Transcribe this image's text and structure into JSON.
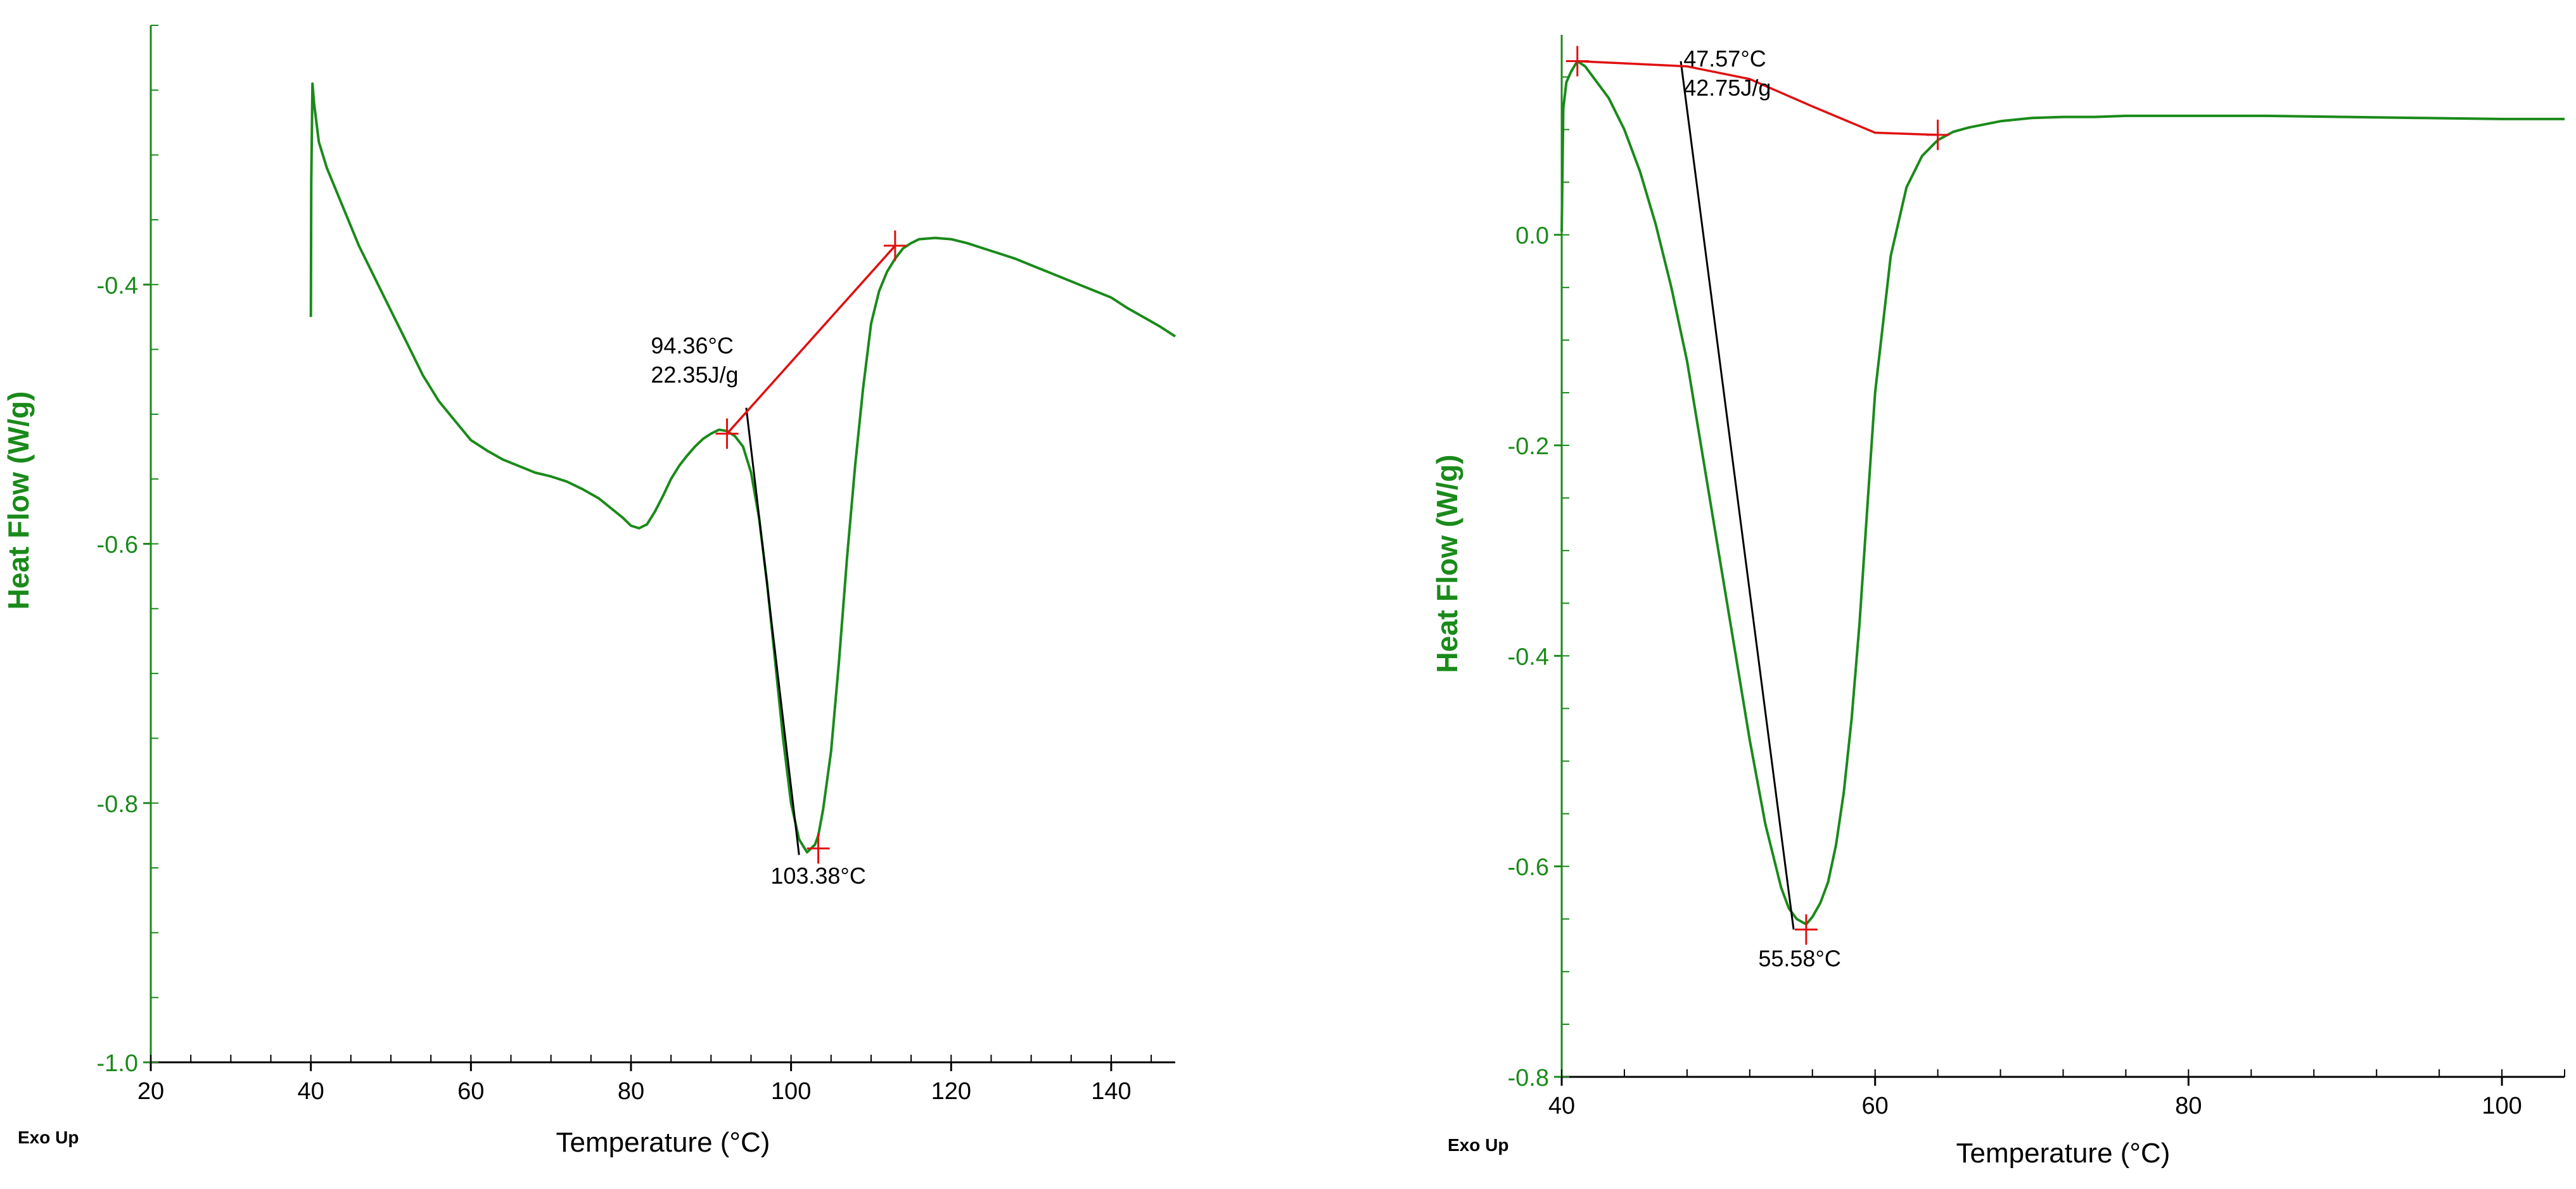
{
  "chart_data": [
    {
      "type": "line",
      "title": "",
      "xlabel": "Temperature (°C)",
      "ylabel": "Heat Flow (W/g)",
      "corner_label": "Exo Up",
      "xlim": [
        20,
        148
      ],
      "ylim": [
        -1.0,
        -0.2
      ],
      "xticks": [
        20,
        40,
        60,
        80,
        100,
        120,
        140
      ],
      "xtick_labels": [
        "20",
        "40",
        "60",
        "80",
        "100",
        "120",
        "140"
      ],
      "xminor_step": 5,
      "yticks": [
        -1.0,
        -0.8,
        -0.6,
        -0.4
      ],
      "ytick_labels": [
        "-1.0",
        "-0.8",
        "-0.6",
        "-0.4"
      ],
      "yminor_step": 0.05,
      "colors": {
        "curve": "#1a8a1a",
        "axis_label": "#1a8a1a",
        "baseline": "#e01010",
        "tangent": "#000000",
        "tick_label": "#1a8a1a"
      },
      "series": [
        {
          "name": "Heat Flow",
          "x": [
            40.0,
            40.05,
            40.2,
            40.4,
            41,
            42,
            44,
            46,
            48,
            50,
            52,
            54,
            56,
            58,
            60,
            62,
            64,
            66,
            68,
            70,
            72,
            74,
            76,
            78,
            79,
            80,
            81,
            82,
            83,
            84,
            85,
            86,
            87,
            88,
            89,
            90,
            91,
            92,
            93,
            94,
            95,
            96,
            97,
            98,
            99,
            100,
            101,
            102,
            103,
            103.4,
            104,
            105,
            106,
            107,
            108,
            109,
            110,
            111,
            112,
            113,
            114,
            115,
            116,
            118,
            120,
            122,
            124,
            126,
            128,
            130,
            132,
            134,
            136,
            138,
            140,
            142,
            144,
            146,
            148
          ],
          "y": [
            -0.425,
            -0.32,
            -0.245,
            -0.26,
            -0.29,
            -0.31,
            -0.34,
            -0.37,
            -0.395,
            -0.42,
            -0.445,
            -0.47,
            -0.49,
            -0.505,
            -0.52,
            -0.528,
            -0.535,
            -0.54,
            -0.545,
            -0.548,
            -0.552,
            -0.558,
            -0.565,
            -0.575,
            -0.58,
            -0.586,
            -0.588,
            -0.585,
            -0.575,
            -0.563,
            -0.55,
            -0.54,
            -0.532,
            -0.525,
            -0.519,
            -0.515,
            -0.512,
            -0.513,
            -0.517,
            -0.525,
            -0.545,
            -0.58,
            -0.63,
            -0.69,
            -0.75,
            -0.8,
            -0.828,
            -0.838,
            -0.832,
            -0.825,
            -0.805,
            -0.76,
            -0.69,
            -0.61,
            -0.54,
            -0.48,
            -0.43,
            -0.405,
            -0.39,
            -0.38,
            -0.372,
            -0.368,
            -0.365,
            -0.364,
            -0.365,
            -0.368,
            -0.372,
            -0.376,
            -0.38,
            -0.385,
            -0.39,
            -0.395,
            -0.4,
            -0.405,
            -0.41,
            -0.418,
            -0.425,
            -0.432,
            -0.44
          ]
        }
      ],
      "baseline": {
        "x": [
          92,
          113
        ],
        "y": [
          -0.515,
          -0.37
        ]
      },
      "tangent": {
        "x": [
          94.4,
          101.0
        ],
        "y": [
          -0.495,
          -0.84
        ]
      },
      "markers": [
        {
          "x": 92,
          "y": -0.515
        },
        {
          "x": 113,
          "y": -0.37
        },
        {
          "x": 103.4,
          "y": -0.835
        }
      ],
      "annotations": [
        {
          "id": "onset",
          "lines": [
            "94.36°C",
            "22.35J/g"
          ],
          "x": 94.36,
          "y": -0.48
        },
        {
          "id": "peak",
          "lines": [
            "103.38°C"
          ],
          "x": 103.38,
          "y": -0.85
        }
      ]
    },
    {
      "type": "line",
      "title": "",
      "xlabel": "Temperature (°C)",
      "ylabel": "Heat Flow (W/g)",
      "corner_label": "Exo Up",
      "xlim": [
        40,
        104
      ],
      "ylim": [
        -0.8,
        0.19
      ],
      "xticks": [
        40,
        60,
        80,
        100
      ],
      "xtick_labels": [
        "40",
        "60",
        "80",
        "100"
      ],
      "xminor_step": 4,
      "yticks": [
        -0.8,
        -0.6,
        -0.4,
        -0.2,
        0.0
      ],
      "ytick_labels": [
        "-0.8",
        "-0.6",
        "-0.4",
        "-0.2",
        "0.0"
      ],
      "yminor_step": 0.05,
      "colors": {
        "curve": "#1a8a1a",
        "axis_label": "#1a8a1a",
        "baseline": "#e01010",
        "tangent": "#000000",
        "tick_label": "#1a8a1a"
      },
      "series": [
        {
          "name": "Heat Flow",
          "x": [
            40.0,
            40.1,
            40.3,
            40.6,
            41.0,
            41.5,
            42,
            43,
            44,
            45,
            46,
            47,
            48,
            49,
            50,
            51,
            52,
            53,
            54,
            54.5,
            55,
            55.6,
            56,
            56.5,
            57,
            57.5,
            58,
            58.5,
            59,
            59.5,
            60,
            61,
            62,
            63,
            64,
            65,
            66,
            68,
            70,
            72,
            74,
            76,
            78,
            80,
            85,
            90,
            95,
            100,
            104
          ],
          "y": [
            0.003,
            0.12,
            0.145,
            0.155,
            0.165,
            0.16,
            0.15,
            0.13,
            0.1,
            0.06,
            0.01,
            -0.05,
            -0.12,
            -0.21,
            -0.3,
            -0.39,
            -0.48,
            -0.56,
            -0.62,
            -0.64,
            -0.65,
            -0.655,
            -0.648,
            -0.635,
            -0.615,
            -0.58,
            -0.53,
            -0.46,
            -0.37,
            -0.26,
            -0.15,
            -0.02,
            0.045,
            0.075,
            0.09,
            0.098,
            0.102,
            0.108,
            0.111,
            0.112,
            0.112,
            0.113,
            0.113,
            0.113,
            0.113,
            0.112,
            0.111,
            0.11,
            0.11
          ]
        }
      ],
      "baseline": {
        "x": [
          41,
          48,
          52,
          56,
          60,
          64
        ],
        "y": [
          0.165,
          0.16,
          0.148,
          0.122,
          0.097,
          0.095
        ]
      },
      "tangent": {
        "x": [
          47.6,
          54.8
        ],
        "y": [
          0.165,
          -0.66
        ]
      },
      "markers": [
        {
          "x": 41,
          "y": 0.165
        },
        {
          "x": 64,
          "y": 0.095
        },
        {
          "x": 55.6,
          "y": -0.66
        }
      ],
      "annotations": [
        {
          "id": "onset",
          "lines": [
            "47.57°C",
            "42.75J/g"
          ],
          "x": 47.57,
          "y": 0.16
        },
        {
          "id": "peak",
          "lines": [
            "55.58°C"
          ],
          "x": 55.58,
          "y": -0.68
        }
      ]
    }
  ]
}
